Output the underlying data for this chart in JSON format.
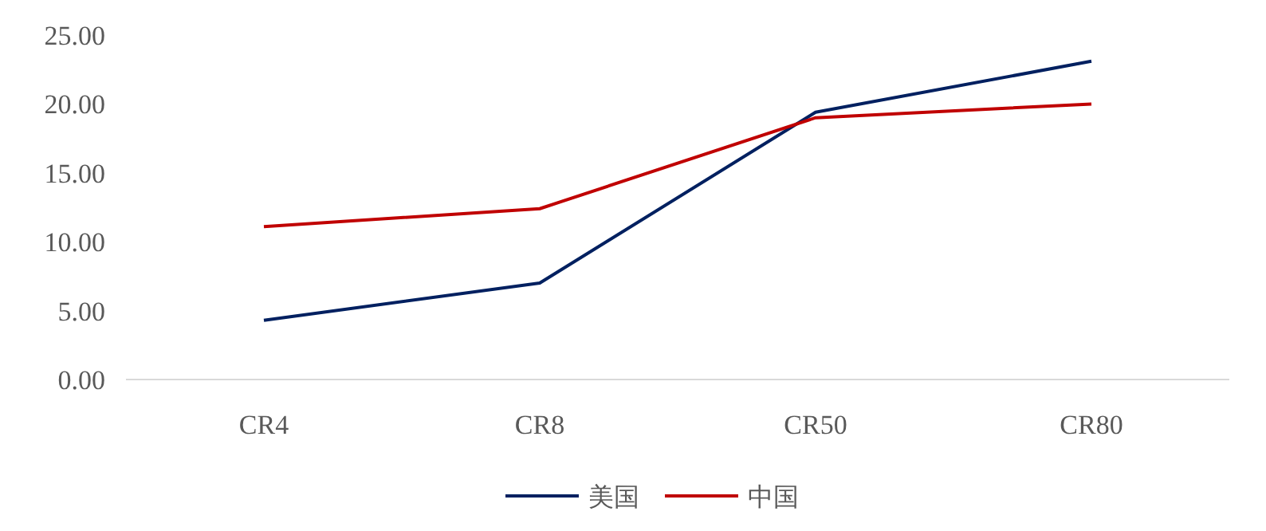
{
  "chart_data": {
    "type": "line",
    "categories": [
      "CR4",
      "CR8",
      "CR50",
      "CR80"
    ],
    "series": [
      {
        "name": "美国",
        "color": "#002060",
        "values": [
          4.3,
          7.0,
          19.4,
          23.1
        ]
      },
      {
        "name": "中国",
        "color": "#c00000",
        "values": [
          11.1,
          12.4,
          19.0,
          20.0
        ]
      }
    ],
    "ylim": [
      0,
      25
    ],
    "yticks": [
      {
        "value": 0,
        "label": "0.00"
      },
      {
        "value": 5,
        "label": "5.00"
      },
      {
        "value": 10,
        "label": "10.00"
      },
      {
        "value": 15,
        "label": "15.00"
      },
      {
        "value": 20,
        "label": "20.00"
      },
      {
        "value": 25,
        "label": "25.00"
      }
    ],
    "grid": false,
    "legend": "bottom",
    "marker": "none",
    "line_style": "solid"
  }
}
